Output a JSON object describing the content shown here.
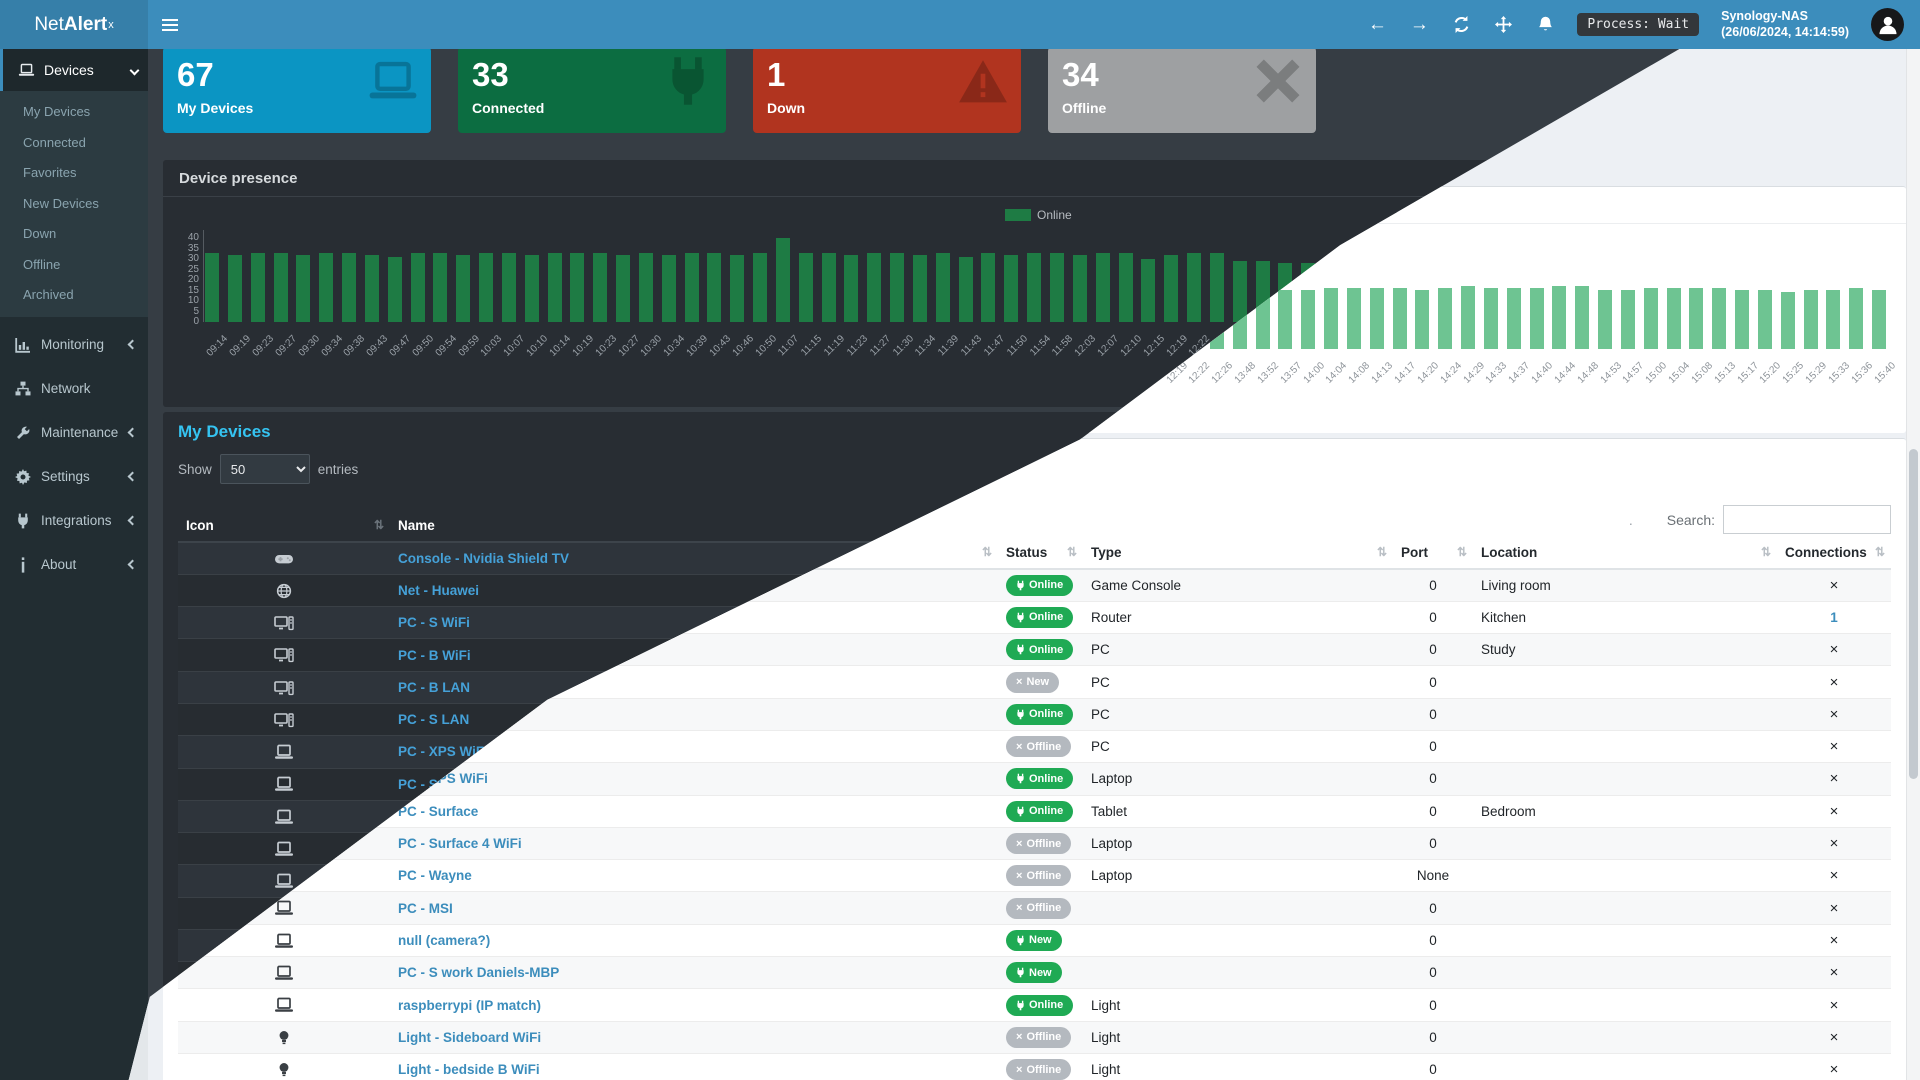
{
  "header": {
    "logo_prefix": "Net",
    "logo_bold": "Alert",
    "logo_sup": "x",
    "process_label": "Process: Wait",
    "host": "Synology-NAS",
    "timestamp": "(26/06/2024, 14:14:59)"
  },
  "sidebar": {
    "devices_label": "Devices",
    "submenu": [
      "My Devices",
      "Connected",
      "Favorites",
      "New Devices",
      "Down",
      "Offline",
      "Archived"
    ],
    "items": [
      {
        "label": "Monitoring",
        "icon": "chart",
        "chevron": true
      },
      {
        "label": "Network",
        "icon": "sitemap",
        "chevron": false
      },
      {
        "label": "Maintenance",
        "icon": "wrench",
        "chevron": true
      },
      {
        "label": "Settings",
        "icon": "gear",
        "chevron": true
      },
      {
        "label": "Integrations",
        "icon": "plug",
        "chevron": true
      },
      {
        "label": "About",
        "icon": "info",
        "chevron": true
      }
    ]
  },
  "page": {
    "title": "Devices"
  },
  "cards": [
    {
      "value": "67",
      "label": "My Devices",
      "color": "#0b95c3",
      "icon": "laptop"
    },
    {
      "value": "33",
      "label": "Connected",
      "color": "#0c6d41",
      "icon": "plug"
    },
    {
      "value": "1",
      "label": "Down",
      "color": "#b1341f",
      "icon": "warning"
    },
    {
      "value": "34",
      "label": "Offline",
      "color": "#9ea0a2",
      "icon": "x"
    }
  ],
  "chart": {
    "title": "Device presence",
    "legend": "Online",
    "chart_data": {
      "type": "bar",
      "title": "Device presence",
      "xlabel": "",
      "ylabel": "",
      "ylim": [
        0,
        40
      ],
      "y_ticks": [
        0,
        5,
        10,
        15,
        20,
        25,
        30,
        35,
        40
      ],
      "legend_position": "top-right",
      "grid": false,
      "x": [
        "09:14",
        "09:19",
        "09:23",
        "09:27",
        "09:30",
        "09:34",
        "09:38",
        "09:43",
        "09:47",
        "09:50",
        "09:54",
        "09:59",
        "10:03",
        "10:07",
        "10:10",
        "10:14",
        "10:19",
        "10:23",
        "10:27",
        "10:30",
        "10:34",
        "10:39",
        "10:43",
        "10:46",
        "10:50",
        "11:07",
        "11:15",
        "11:19",
        "11:23",
        "11:27",
        "11:30",
        "11:34",
        "11:39",
        "11:43",
        "11:47",
        "11:50",
        "11:54",
        "11:58",
        "12:03",
        "12:07",
        "12:10",
        "12:15",
        "12:19",
        "12:22",
        "12:26",
        "13:48",
        "13:52",
        "13:57",
        "14:00",
        "14:04",
        "14:08",
        "14:13",
        "14:17",
        "14:20",
        "14:24",
        "14:29",
        "14:33",
        "14:37",
        "14:40",
        "14:44",
        "14:48",
        "14:53",
        "14:57",
        "15:00",
        "15:04",
        "15:08",
        "15:13",
        "15:17",
        "15:20",
        "15:25",
        "15:29",
        "15:33",
        "15:36",
        "15:40"
      ],
      "series": [
        {
          "name": "Online",
          "values": [
            33,
            32,
            33,
            33,
            32,
            33,
            33,
            32,
            31,
            33,
            33,
            32,
            33,
            33,
            32,
            33,
            33,
            33,
            32,
            33,
            32,
            33,
            33,
            32,
            33,
            40,
            33,
            33,
            32,
            33,
            33,
            32,
            33,
            31,
            33,
            32,
            33,
            33,
            32,
            33,
            33,
            30,
            32,
            33,
            33,
            29,
            29,
            28,
            28,
            29,
            29,
            29,
            29,
            28,
            29,
            30,
            29,
            29,
            29,
            30,
            30,
            28,
            28,
            29,
            29,
            29,
            29,
            28,
            28,
            27,
            28,
            28,
            29,
            28
          ]
        }
      ],
      "theme_split_note": "bars left of diagonal rendered dark-green (dark theme), right light-green (light theme)"
    }
  },
  "table": {
    "heading": "My Devices",
    "show_label": "Show",
    "page_size": "50",
    "entries_label": "entries",
    "artifact_dot": ".",
    "search_label": "Search:",
    "search_value": "",
    "columns": [
      "Icon",
      "Name",
      "Status",
      "Type",
      "Port",
      "Location",
      "Connections"
    ],
    "rows": [
      {
        "icon": "gamepad",
        "name": "Console - Nvidia Shield TV",
        "status": "Online",
        "status_kind": "online",
        "type": "Game Console",
        "port": "0",
        "location": "Living room",
        "connections": "×"
      },
      {
        "icon": "globe",
        "name": "Net - Huawei",
        "status": "Online",
        "status_kind": "online",
        "type": "Router",
        "port": "0",
        "location": "Kitchen",
        "connections": "1",
        "connections_link": true
      },
      {
        "icon": "desktop",
        "name": "PC - S WiFi",
        "status": "Online",
        "status_kind": "online",
        "type": "PC",
        "port": "0",
        "location": "Study",
        "connections": "×"
      },
      {
        "icon": "desktop",
        "name": "PC - B WiFi",
        "status": "New",
        "status_kind": "new-offline",
        "type": "PC",
        "port": "0",
        "location": "",
        "connections": "×"
      },
      {
        "icon": "desktop",
        "name": "PC - B LAN",
        "status": "Online",
        "status_kind": "online",
        "type": "PC",
        "port": "0",
        "location": "",
        "connections": "×"
      },
      {
        "icon": "desktop",
        "name": "PC - S LAN",
        "status": "Offline",
        "status_kind": "offline",
        "type": "PC",
        "port": "0",
        "location": "",
        "connections": "×"
      },
      {
        "icon": "laptop",
        "name": "PC - XPS WiFi",
        "status": "Online",
        "status_kind": "online",
        "type": "Laptop",
        "port": "0",
        "location": "",
        "connections": "×"
      },
      {
        "icon": "laptop",
        "name": "PC - Surface",
        "status": "Online",
        "status_kind": "online",
        "type": "Tablet",
        "port": "0",
        "location": "Bedroom",
        "connections": "×"
      },
      {
        "icon": "laptop",
        "name": "PC - Surface 4 WiFi",
        "status": "Offline",
        "status_kind": "offline",
        "type": "Laptop",
        "port": "0",
        "location": "",
        "connections": "×"
      },
      {
        "icon": "laptop",
        "name": "PC - Wayne",
        "status": "Offline",
        "status_kind": "offline",
        "type": "Laptop",
        "port": "None",
        "location": "",
        "connections": "×"
      },
      {
        "icon": "laptop",
        "name": "PC - MSI",
        "status": "Offline",
        "status_kind": "offline",
        "type": "",
        "port": "0",
        "location": "",
        "connections": "×"
      },
      {
        "icon": "laptop",
        "name": "null (camera?)",
        "status": "New",
        "status_kind": "new-online",
        "type": "",
        "port": "0",
        "location": "",
        "connections": "×"
      },
      {
        "icon": "laptop",
        "name": "PC - S work Daniels-MBP",
        "status": "New",
        "status_kind": "new-online",
        "type": "",
        "port": "0",
        "location": "",
        "connections": "×"
      },
      {
        "icon": "laptop",
        "name": "raspberrypi (IP match)",
        "status": "Online",
        "status_kind": "online",
        "type": "Light",
        "port": "0",
        "location": "",
        "connections": "×"
      },
      {
        "icon": "bulb",
        "name": "Light - Sideboard WiFi",
        "status": "Offline",
        "status_kind": "offline",
        "type": "Light",
        "port": "0",
        "location": "",
        "connections": "×"
      },
      {
        "icon": "bulb",
        "name": "Light - bedside B WiFi",
        "status": "Offline",
        "status_kind": "offline",
        "type": "Light",
        "port": "0",
        "location": "",
        "connections": "×"
      }
    ]
  },
  "colors": {
    "header_blue": "#3c8dbc",
    "logo_blue": "#367fa9",
    "sidebar_dark": "#222d32",
    "submenu_dark": "#2c3b41",
    "page_bg_dark": "#363d44",
    "page_bg_light": "#edf0f4",
    "panel_dark": "#282d33",
    "bar_dark_green": "#1e7b44",
    "bar_light_green": "#6ec492",
    "badge_green": "#1faa54",
    "badge_gray": "#b4b9bf",
    "link_dark": "#45a1d8",
    "link_light": "#3c8dbc",
    "heading_cyan": "#35c4f2"
  }
}
